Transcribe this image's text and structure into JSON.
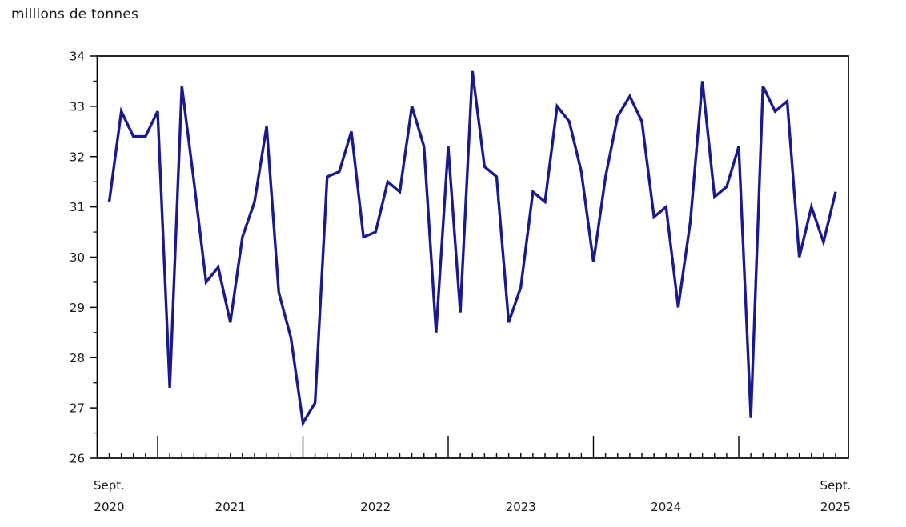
{
  "page": {
    "title": "millions de tonnes"
  },
  "chart_data": {
    "type": "line",
    "title": "millions de tonnes",
    "unit_label": "millions de tonnes",
    "line_color": "#1A1A8C",
    "axis_color": "#000000",
    "grid": false,
    "legend": "none",
    "ylim": [
      26,
      34
    ],
    "y_ticks": [
      26,
      27,
      28,
      29,
      30,
      31,
      32,
      33,
      34
    ],
    "y_minor_step": 0.5,
    "x_axis": {
      "start_label_line1": "Sept.",
      "start_label_line2": "2020",
      "end_label_line1": "Sept.",
      "end_label_line2": "2025",
      "year_labels": [
        "2021",
        "2022",
        "2023",
        "2024"
      ]
    },
    "x": [
      "2020-09",
      "2020-10",
      "2020-11",
      "2020-12",
      "2021-01",
      "2021-02",
      "2021-03",
      "2021-04",
      "2021-05",
      "2021-06",
      "2021-07",
      "2021-08",
      "2021-09",
      "2021-10",
      "2021-11",
      "2021-12",
      "2022-01",
      "2022-02",
      "2022-03",
      "2022-04",
      "2022-05",
      "2022-06",
      "2022-07",
      "2022-08",
      "2022-09",
      "2022-10",
      "2022-11",
      "2022-12",
      "2023-01",
      "2023-02",
      "2023-03",
      "2023-04",
      "2023-05",
      "2023-06",
      "2023-07",
      "2023-08",
      "2023-09",
      "2023-10",
      "2023-11",
      "2023-12",
      "2024-01",
      "2024-02",
      "2024-03",
      "2024-04",
      "2024-05",
      "2024-06",
      "2024-07",
      "2024-08",
      "2024-09",
      "2024-10",
      "2024-11",
      "2024-12",
      "2025-01",
      "2025-02",
      "2025-03",
      "2025-04",
      "2025-05",
      "2025-06",
      "2025-07",
      "2025-08",
      "2025-09"
    ],
    "values": [
      31.1,
      32.9,
      32.4,
      32.4,
      32.9,
      27.4,
      33.4,
      31.5,
      29.5,
      29.8,
      28.7,
      30.4,
      31.1,
      32.6,
      29.3,
      28.4,
      26.7,
      27.1,
      31.6,
      31.7,
      32.5,
      30.4,
      30.5,
      31.5,
      31.3,
      33.0,
      32.2,
      28.5,
      32.2,
      28.9,
      33.7,
      31.8,
      31.6,
      28.7,
      29.4,
      31.3,
      31.1,
      33.0,
      32.7,
      31.7,
      29.9,
      31.6,
      32.8,
      33.2,
      32.7,
      30.8,
      31.0,
      29.0,
      30.7,
      33.5,
      31.2,
      31.4,
      32.2,
      26.8,
      33.4,
      32.9,
      33.1,
      30.0,
      31.0,
      30.3,
      31.3
    ]
  }
}
